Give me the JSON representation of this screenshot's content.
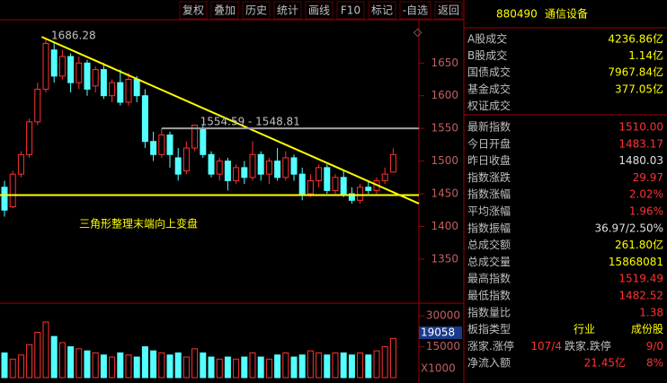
{
  "toolbar": [
    "复权",
    "叠加",
    "历史",
    "统计",
    "画线",
    "F10",
    "标记",
    "-自选",
    "返回"
  ],
  "chart_data": {
    "type": "candlestick",
    "up_color": "#ff3232",
    "down_color": "#54ffff",
    "ylim": [
      1284,
      1708
    ],
    "yticks": [
      1350,
      1400,
      1450,
      1500,
      1550,
      1600,
      1650
    ],
    "open": [
      1460,
      1430,
      1480,
      1510,
      1560,
      1610,
      1670,
      1630,
      1660,
      1620,
      1650,
      1615,
      1640,
      1600,
      1620,
      1590,
      1625,
      1600,
      1530,
      1510,
      1540,
      1505,
      1485,
      1520,
      1550,
      1510,
      1480,
      1500,
      1470,
      1490,
      1475,
      1510,
      1480,
      1500,
      1475,
      1505,
      1480,
      1450,
      1470,
      1490,
      1455,
      1475,
      1450,
      1440,
      1460,
      1455,
      1470,
      1483.17
    ],
    "high": [
      1470,
      1485,
      1515,
      1565,
      1620,
      1686.28,
      1680,
      1670,
      1665,
      1660,
      1655,
      1645,
      1650,
      1625,
      1640,
      1635,
      1630,
      1610,
      1545,
      1550,
      1545,
      1520,
      1530,
      1554.59,
      1555,
      1515,
      1505,
      1505,
      1495,
      1500,
      1530,
      1515,
      1505,
      1520,
      1515,
      1510,
      1490,
      1480,
      1495,
      1495,
      1480,
      1485,
      1460,
      1465,
      1470,
      1475,
      1490,
      1519.49
    ],
    "low": [
      1415,
      1428,
      1475,
      1505,
      1555,
      1605,
      1620,
      1625,
      1605,
      1610,
      1600,
      1605,
      1595,
      1590,
      1585,
      1585,
      1590,
      1520,
      1500,
      1505,
      1490,
      1470,
      1480,
      1515,
      1505,
      1475,
      1470,
      1455,
      1465,
      1465,
      1470,
      1470,
      1465,
      1470,
      1470,
      1470,
      1440,
      1445,
      1460,
      1450,
      1450,
      1445,
      1435,
      1435,
      1450,
      1450,
      1465,
      1482.52
    ],
    "close": [
      1425,
      1480,
      1510,
      1560,
      1610,
      1680,
      1630,
      1660,
      1620,
      1650,
      1610,
      1640,
      1600,
      1620,
      1590,
      1625,
      1600,
      1530,
      1510,
      1540,
      1510,
      1480,
      1520,
      1555,
      1510,
      1480,
      1500,
      1470,
      1490,
      1475,
      1510,
      1480,
      1500,
      1475,
      1505,
      1480,
      1450,
      1470,
      1490,
      1455,
      1475,
      1450,
      1440,
      1460,
      1455,
      1470,
      1480,
      1510
    ],
    "annotations": [
      {
        "text": "1686.28",
        "index": 5,
        "price": 1686.28
      },
      {
        "text": "1554.59 - 1548.81",
        "index": 23,
        "price": 1554.59
      }
    ],
    "caption": "三角形整理末端向上变盘",
    "lines": [
      {
        "color": "#ffff00",
        "x": [
          4.5,
          51
        ],
        "y": [
          1690,
          1430
        ]
      },
      {
        "color": "#ffff00",
        "x": [
          -1,
          51
        ],
        "y": [
          1448,
          1448
        ]
      },
      {
        "color": "#a0a0a0",
        "x": [
          19,
          51
        ],
        "y": [
          1550,
          1550
        ]
      }
    ],
    "volume": {
      "values": [
        12000,
        9000,
        11000,
        16000,
        22000,
        27000,
        20000,
        17000,
        15000,
        14000,
        13000,
        12000,
        11000,
        10000,
        12000,
        11000,
        10000,
        15000,
        13000,
        12000,
        11000,
        12000,
        10000,
        14000,
        12000,
        10000,
        9000,
        10000,
        9000,
        10000,
        12000,
        10000,
        9000,
        11000,
        12000,
        10000,
        11000,
        13000,
        12000,
        11000,
        12000,
        12000,
        11000,
        12000,
        11000,
        13000,
        15000,
        19058
      ],
      "ylim": [
        0,
        34000
      ],
      "yticks": [
        15000,
        30000
      ],
      "current": "19058",
      "unit": "X1000"
    }
  },
  "panel": {
    "code": "880490",
    "name": "通信设备",
    "rows": [
      {
        "label": "A股成交",
        "value": "4236.86亿",
        "color": "#ffff00"
      },
      {
        "label": "B股成交",
        "value": "1.14亿",
        "color": "#ffff00"
      },
      {
        "label": "国债成交",
        "value": "7967.84亿",
        "color": "#ffff00"
      },
      {
        "label": "基金成交",
        "value": "377.05亿",
        "color": "#ffff00"
      },
      {
        "label": "权证成交"
      },
      {
        "label": "最新指数",
        "value": "1510.00",
        "color": "#ff3232"
      },
      {
        "label": "今日开盘",
        "value": "1483.17",
        "color": "#ff3232"
      },
      {
        "label": "昨日收盘",
        "value": "1480.03",
        "color": "#e0e0e0"
      },
      {
        "label": "指数涨跌",
        "value": "29.97",
        "color": "#ff3232"
      },
      {
        "label": "指数涨幅",
        "value": "2.02%",
        "color": "#ff3232"
      },
      {
        "label": "平均涨幅",
        "value": "1.96%",
        "color": "#ff3232"
      },
      {
        "label": "指数振幅",
        "value": "36.97/2.50%",
        "color": "#e0e0e0"
      },
      {
        "label": "总成交额",
        "value": "261.80亿",
        "color": "#ffff00"
      },
      {
        "label": "总成交量",
        "value": "15868081",
        "color": "#ffff00"
      },
      {
        "label": "最高指数",
        "value": "1519.49",
        "color": "#ff3232"
      },
      {
        "label": "最低指数",
        "value": "1482.52",
        "color": "#ff3232"
      },
      {
        "label": "指数量比",
        "value": "1.38",
        "color": "#ff3232"
      },
      {
        "label": "板指类型",
        "value": "行业",
        "value2": "成份股",
        "color": "#ffff00"
      },
      {
        "label": "涨家.涨停",
        "value": "107/4",
        "label2": "跌家.跌停",
        "value2": "9/0",
        "color": "#ff3232"
      },
      {
        "label": "净流入额",
        "value": "21.45亿",
        "value2": "8%",
        "color": "#ff3232"
      }
    ]
  }
}
